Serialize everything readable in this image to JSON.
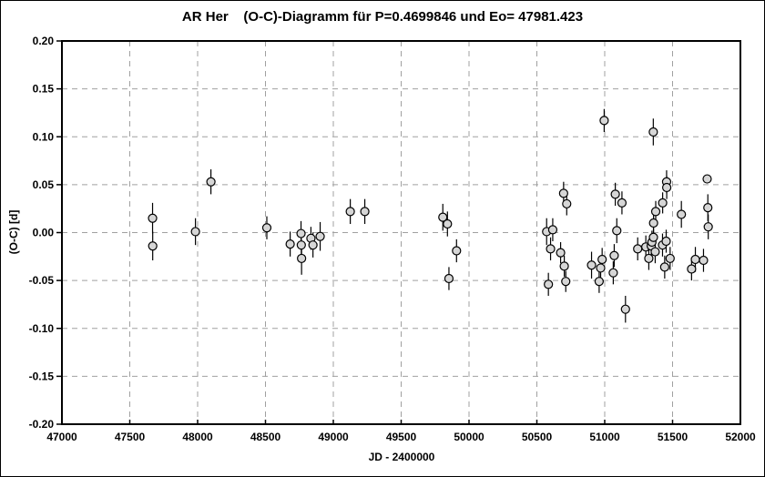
{
  "chart_data": {
    "type": "scatter",
    "title": "AR Her    (O-C)-Diagramm für P=0.4699846 und Eo= 47981.423",
    "xlabel": "JD - 2400000",
    "ylabel": "(O-C) [d]",
    "xlim": [
      47000,
      52000
    ],
    "ylim": [
      -0.2,
      0.2
    ],
    "xticks": [
      {
        "v": 47000,
        "label": "47000"
      },
      {
        "v": 47500,
        "label": "47500"
      },
      {
        "v": 48000,
        "label": "48000"
      },
      {
        "v": 48500,
        "label": "48500"
      },
      {
        "v": 49000,
        "label": "49000"
      },
      {
        "v": 49500,
        "label": "49500"
      },
      {
        "v": 50000,
        "label": "50000"
      },
      {
        "v": 50500,
        "label": "50500"
      },
      {
        "v": 51000,
        "label": "51000"
      },
      {
        "v": 51500,
        "label": "51500"
      },
      {
        "v": 52000,
        "label": "52000"
      }
    ],
    "yticks": [
      {
        "v": 0.2,
        "label": "0.20"
      },
      {
        "v": 0.15,
        "label": "0.15"
      },
      {
        "v": 0.1,
        "label": "0.10"
      },
      {
        "v": 0.05,
        "label": "0.05"
      },
      {
        "v": 0.0,
        "label": "0.00"
      },
      {
        "v": -0.05,
        "label": "-0.05"
      },
      {
        "v": -0.1,
        "label": "-0.10"
      },
      {
        "v": -0.15,
        "label": "-0.15"
      },
      {
        "v": -0.2,
        "label": "-0.20"
      }
    ],
    "grid": "dashed-gray-at-ticks",
    "legend": "none",
    "marker_style": "circle-with-vertical-error-bar",
    "colors": {
      "marker_fill": "#d6d6d6",
      "marker_stroke": "#000000",
      "error_bar": "#000000",
      "grid": "#a0a0a0",
      "frame": "#000000",
      "background": "#ffffff"
    },
    "points_format": [
      "jd_minus_2400000",
      "o_minus_c_days",
      "error_days"
    ],
    "points": [
      [
        47668,
        0.015,
        0.016
      ],
      [
        47669,
        -0.014,
        0.015
      ],
      [
        47984,
        0.001,
        0.014
      ],
      [
        48098,
        0.053,
        0.013
      ],
      [
        48510,
        0.005,
        0.012
      ],
      [
        48682,
        -0.012,
        0.013
      ],
      [
        48762,
        -0.001,
        0.013
      ],
      [
        48764,
        -0.013,
        0.013
      ],
      [
        48766,
        -0.027,
        0.017
      ],
      [
        48835,
        -0.006,
        0.012
      ],
      [
        48850,
        -0.013,
        0.013
      ],
      [
        48903,
        -0.004,
        0.015
      ],
      [
        49125,
        0.022,
        0.013
      ],
      [
        49232,
        0.022,
        0.013
      ],
      [
        49807,
        0.016,
        0.014
      ],
      [
        49841,
        0.009,
        0.013
      ],
      [
        49852,
        -0.048,
        0.012
      ],
      [
        49908,
        -0.019,
        0.012
      ],
      [
        50572,
        0.001,
        0.014
      ],
      [
        50585,
        -0.054,
        0.012
      ],
      [
        50601,
        -0.017,
        0.012
      ],
      [
        50617,
        0.003,
        0.012
      ],
      [
        50675,
        -0.021,
        0.011
      ],
      [
        50697,
        0.041,
        0.012
      ],
      [
        50702,
        -0.035,
        0.011
      ],
      [
        50713,
        -0.051,
        0.011
      ],
      [
        50720,
        0.03,
        0.012
      ],
      [
        50903,
        -0.034,
        0.014
      ],
      [
        50959,
        -0.051,
        0.012
      ],
      [
        50970,
        -0.037,
        0.012
      ],
      [
        50981,
        -0.028,
        0.012
      ],
      [
        50996,
        0.117,
        0.012
      ],
      [
        51063,
        -0.042,
        0.012
      ],
      [
        51070,
        -0.024,
        0.012
      ],
      [
        51078,
        0.04,
        0.012
      ],
      [
        51089,
        0.002,
        0.013
      ],
      [
        51127,
        0.031,
        0.012
      ],
      [
        51153,
        -0.08,
        0.014
      ],
      [
        51243,
        -0.017,
        0.012
      ],
      [
        51303,
        -0.015,
        0.012
      ],
      [
        51325,
        -0.027,
        0.012
      ],
      [
        51343,
        -0.014,
        0.012
      ],
      [
        51348,
        -0.01,
        0.012
      ],
      [
        51358,
        0.105,
        0.014
      ],
      [
        51359,
        -0.005,
        0.012
      ],
      [
        51360,
        0.01,
        0.011
      ],
      [
        51372,
        -0.02,
        0.012
      ],
      [
        51376,
        0.022,
        0.011
      ],
      [
        51426,
        -0.013,
        0.012
      ],
      [
        51427,
        0.031,
        0.011
      ],
      [
        51442,
        -0.036,
        0.012
      ],
      [
        51453,
        -0.009,
        0.012
      ],
      [
        51456,
        0.053,
        0.012
      ],
      [
        51457,
        0.047,
        0.012
      ],
      [
        51482,
        -0.027,
        0.012
      ],
      [
        51565,
        0.019,
        0.014
      ],
      [
        51640,
        -0.038,
        0.012
      ],
      [
        51668,
        -0.028,
        0.013
      ],
      [
        51728,
        -0.029,
        0.012
      ],
      [
        51755,
        0.056,
        0.004
      ],
      [
        51760,
        0.026,
        0.014
      ],
      [
        51763,
        0.006,
        0.013
      ]
    ]
  }
}
